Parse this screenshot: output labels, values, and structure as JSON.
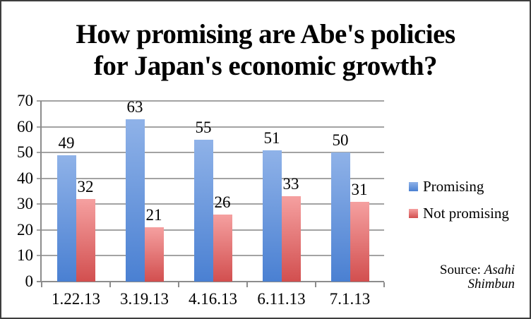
{
  "title": {
    "line1": "How promising are Abe's policies",
    "line2": "for Japan's economic growth?"
  },
  "chart_data": {
    "type": "bar",
    "title": "How promising are Abe's policies for Japan's economic growth?",
    "categories": [
      "1.22.13",
      "3.19.13",
      "4.16.13",
      "6.11.13",
      "7.1.13"
    ],
    "series": [
      {
        "name": "Promising",
        "values": [
          49,
          63,
          55,
          51,
          50
        ],
        "color": "#4A80D2",
        "gradient_top": "#8FB2E8"
      },
      {
        "name": "Not promising",
        "values": [
          32,
          21,
          26,
          33,
          31
        ],
        "color": "#D24F4F",
        "gradient_top": "#F5A0A0"
      }
    ],
    "ylim": [
      0,
      70
    ],
    "ytick_step": 10,
    "grid": true,
    "value_labels": true,
    "legend_position": "right"
  },
  "source": {
    "label": "Source: ",
    "publication": "Asahi Shimbun"
  },
  "colors": {
    "gridline": "#A3A3A3",
    "axis": "#8C8C8C",
    "frame": "#3D3D3D",
    "text": "#000000"
  }
}
